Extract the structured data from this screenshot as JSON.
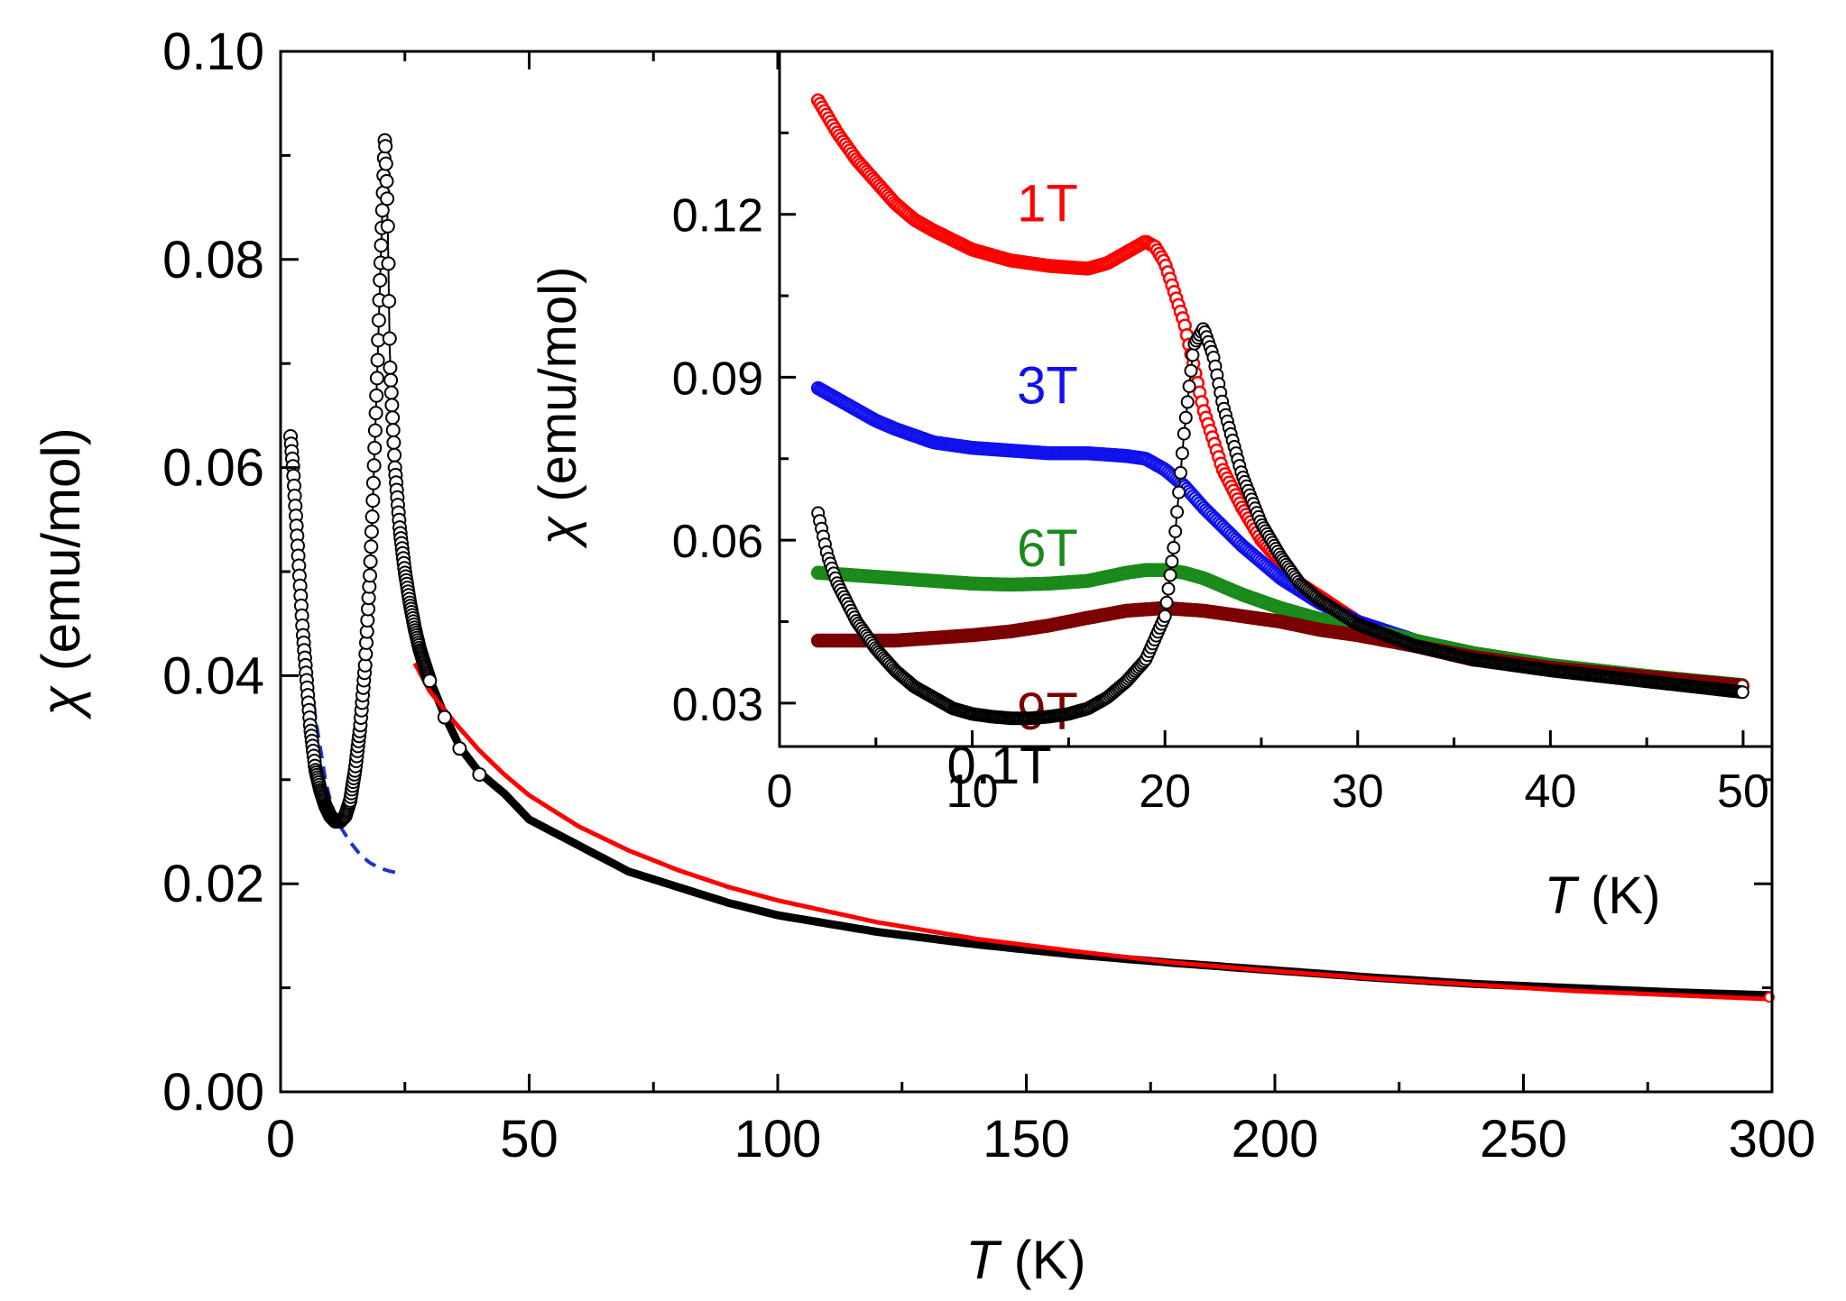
{
  "chart_data": [
    {
      "type": "scatter",
      "name": "main",
      "xlabel_var": "T",
      "xlabel_unit": " (K)",
      "ylabel_var": "χ",
      "ylabel_unit": " (emu/mol)",
      "xlim": [
        0,
        300
      ],
      "ylim": [
        0.0,
        0.1
      ],
      "xticks": [
        {
          "v": 0,
          "t": "0"
        },
        {
          "v": 50,
          "t": "50"
        },
        {
          "v": 100,
          "t": "100"
        },
        {
          "v": 150,
          "t": "150"
        },
        {
          "v": 200,
          "t": "200"
        },
        {
          "v": 250,
          "t": "250"
        },
        {
          "v": 300,
          "t": "300"
        }
      ],
      "yticks": [
        {
          "v": 0.0,
          "t": "0.00"
        },
        {
          "v": 0.02,
          "t": "0.02"
        },
        {
          "v": 0.04,
          "t": "0.04"
        },
        {
          "v": 0.06,
          "t": "0.06"
        },
        {
          "v": 0.08,
          "t": "0.08"
        },
        {
          "v": 0.1,
          "t": "0.10"
        }
      ],
      "series": [
        {
          "name": "data_0.1T",
          "style": "open-circles",
          "color": "#000000",
          "x": [
            2.0,
            2.5,
            3.0,
            3.5,
            4.0,
            4.5,
            5.0,
            5.5,
            6.0,
            7.0,
            8.0,
            9.0,
            10.0,
            11.0,
            12.0,
            13.0,
            14.0,
            15.0,
            16.0,
            17.0,
            18.0,
            18.5,
            19.0,
            19.5,
            20.0,
            20.5,
            21.0,
            21.5,
            22.0,
            22.5,
            23.0,
            24.0,
            25.0,
            26.0,
            27.0,
            28.0,
            30.0,
            33.0,
            36.0,
            40.0,
            45.0,
            50.0,
            60.0,
            70.0,
            80.0,
            90.0,
            100.0,
            120.0,
            140.0,
            160.0,
            180.0,
            200.0,
            220.0,
            240.0,
            260.0,
            280.0,
            300.0
          ],
          "y": [
            0.063,
            0.06,
            0.056,
            0.052,
            0.048,
            0.044,
            0.041,
            0.038,
            0.035,
            0.031,
            0.029,
            0.0275,
            0.0265,
            0.026,
            0.026,
            0.0265,
            0.028,
            0.031,
            0.035,
            0.041,
            0.05,
            0.056,
            0.063,
            0.07,
            0.078,
            0.085,
            0.092,
            0.085,
            0.07,
            0.065,
            0.06,
            0.054,
            0.05,
            0.047,
            0.0445,
            0.0425,
            0.0395,
            0.036,
            0.033,
            0.0305,
            0.0285,
            0.026,
            0.0235,
            0.021,
            0.0195,
            0.018,
            0.0168,
            0.0152,
            0.014,
            0.013,
            0.0122,
            0.0115,
            0.0108,
            0.0102,
            0.0098,
            0.0094,
            0.0091
          ]
        },
        {
          "name": "fit_high_T",
          "style": "line",
          "color": "#ff0000",
          "x": [
            27,
            30,
            35,
            40,
            45,
            50,
            60,
            70,
            80,
            90,
            100,
            120,
            140,
            160,
            180,
            200,
            220,
            240,
            260,
            280,
            300
          ],
          "y": [
            0.0412,
            0.0385,
            0.0355,
            0.0328,
            0.0305,
            0.0285,
            0.0255,
            0.0232,
            0.0213,
            0.0197,
            0.0184,
            0.0163,
            0.0147,
            0.0135,
            0.0124,
            0.0116,
            0.0109,
            0.0103,
            0.0097,
            0.0093,
            0.0089
          ]
        },
        {
          "name": "fit_low_T",
          "style": "dashed",
          "color": "#2233cc",
          "x": [
            2,
            3,
            4,
            5,
            6,
            7,
            8,
            9,
            10,
            11,
            12,
            14,
            16,
            18,
            20,
            22,
            24
          ],
          "y": [
            0.063,
            0.057,
            0.051,
            0.045,
            0.04,
            0.036,
            0.033,
            0.03,
            0.028,
            0.0265,
            0.0255,
            0.024,
            0.0228,
            0.022,
            0.0215,
            0.0212,
            0.021
          ]
        }
      ]
    },
    {
      "type": "scatter",
      "name": "inset",
      "xlabel_var": "T",
      "xlabel_unit": " (K)",
      "ylabel_var": "χ",
      "ylabel_unit": " (emu/mol)",
      "xlim": [
        0,
        51.5
      ],
      "ylim": [
        0.022,
        0.15
      ],
      "xticks": [
        {
          "v": 0,
          "t": "0"
        },
        {
          "v": 10,
          "t": "10"
        },
        {
          "v": 20,
          "t": "20"
        },
        {
          "v": 30,
          "t": "30"
        },
        {
          "v": 40,
          "t": "40"
        },
        {
          "v": 50,
          "t": "50"
        }
      ],
      "yticks": [
        {
          "v": 0.03,
          "t": "0.03"
        },
        {
          "v": 0.06,
          "t": "0.06"
        },
        {
          "v": 0.09,
          "t": "0.09"
        },
        {
          "v": 0.12,
          "t": "0.12"
        }
      ],
      "series": [
        {
          "name": "1T",
          "label": "1T",
          "color": "#ff0000",
          "label_at": [
            12.5,
            0.122
          ],
          "x": [
            2,
            3,
            4,
            5,
            6,
            7,
            8,
            10,
            12,
            14,
            16,
            17,
            18,
            19,
            19.5,
            20,
            21,
            22,
            23,
            24,
            25,
            27,
            30,
            33,
            36,
            40,
            45,
            50
          ],
          "y": [
            0.141,
            0.135,
            0.13,
            0.126,
            0.122,
            0.119,
            0.117,
            0.1135,
            0.1115,
            0.1105,
            0.11,
            0.111,
            0.113,
            0.115,
            0.114,
            0.111,
            0.1,
            0.084,
            0.073,
            0.066,
            0.06,
            0.052,
            0.045,
            0.0405,
            0.038,
            0.0365,
            0.0345,
            0.033
          ]
        },
        {
          "name": "3T",
          "label": "3T",
          "color": "#1111ee",
          "label_at": [
            12.5,
            0.0885
          ],
          "x": [
            2,
            3,
            4,
            5,
            6,
            8,
            10,
            12,
            14,
            16,
            18,
            19,
            20,
            21,
            22,
            24,
            26,
            28,
            30,
            33,
            36,
            40,
            45,
            50
          ],
          "y": [
            0.088,
            0.086,
            0.084,
            0.082,
            0.0805,
            0.078,
            0.077,
            0.0765,
            0.076,
            0.076,
            0.0755,
            0.075,
            0.073,
            0.07,
            0.066,
            0.059,
            0.053,
            0.0485,
            0.045,
            0.0415,
            0.039,
            0.0365,
            0.0345,
            0.033
          ]
        },
        {
          "name": "6T",
          "label": "6T",
          "color": "#1a8a1a",
          "label_at": [
            12.5,
            0.0585
          ],
          "x": [
            2,
            4,
            6,
            8,
            10,
            12,
            14,
            16,
            18,
            19,
            20,
            21,
            22,
            24,
            26,
            28,
            30,
            33,
            36,
            40,
            45,
            50
          ],
          "y": [
            0.054,
            0.0535,
            0.053,
            0.0525,
            0.052,
            0.0518,
            0.052,
            0.0525,
            0.054,
            0.0545,
            0.0545,
            0.054,
            0.053,
            0.05,
            0.0475,
            0.0455,
            0.044,
            0.0415,
            0.0392,
            0.037,
            0.035,
            0.0333
          ]
        },
        {
          "name": "9T",
          "label": "9T",
          "color": "#7a0000",
          "label_at": [
            12.5,
            0.0285
          ],
          "x": [
            2,
            4,
            6,
            8,
            10,
            12,
            14,
            16,
            18,
            20,
            22,
            24,
            26,
            28,
            30,
            33,
            36,
            40,
            45,
            50
          ],
          "y": [
            0.0415,
            0.0415,
            0.0415,
            0.042,
            0.0425,
            0.0432,
            0.0443,
            0.0457,
            0.047,
            0.0475,
            0.047,
            0.046,
            0.045,
            0.0435,
            0.0425,
            0.0405,
            0.0385,
            0.0365,
            0.0348,
            0.0332
          ]
        },
        {
          "name": "0.1T",
          "label": "0.1T",
          "color": "#000000",
          "label_at": [
            10,
            0.0185
          ],
          "x": [
            2,
            2.5,
            3,
            4,
            5,
            6,
            7,
            8,
            9,
            10,
            11,
            12,
            13,
            14,
            15,
            16,
            17,
            18,
            19,
            20,
            20.5,
            21,
            21.5,
            22,
            22.5,
            23,
            24,
            25,
            26,
            27,
            28,
            30,
            33,
            36,
            40,
            45,
            50
          ],
          "y": [
            0.065,
            0.057,
            0.052,
            0.045,
            0.04,
            0.036,
            0.033,
            0.031,
            0.029,
            0.028,
            0.0275,
            0.0272,
            0.0272,
            0.0275,
            0.028,
            0.029,
            0.031,
            0.034,
            0.038,
            0.046,
            0.06,
            0.08,
            0.096,
            0.099,
            0.094,
            0.085,
            0.072,
            0.063,
            0.057,
            0.052,
            0.049,
            0.0445,
            0.0405,
            0.038,
            0.036,
            0.034,
            0.032
          ]
        }
      ]
    }
  ]
}
